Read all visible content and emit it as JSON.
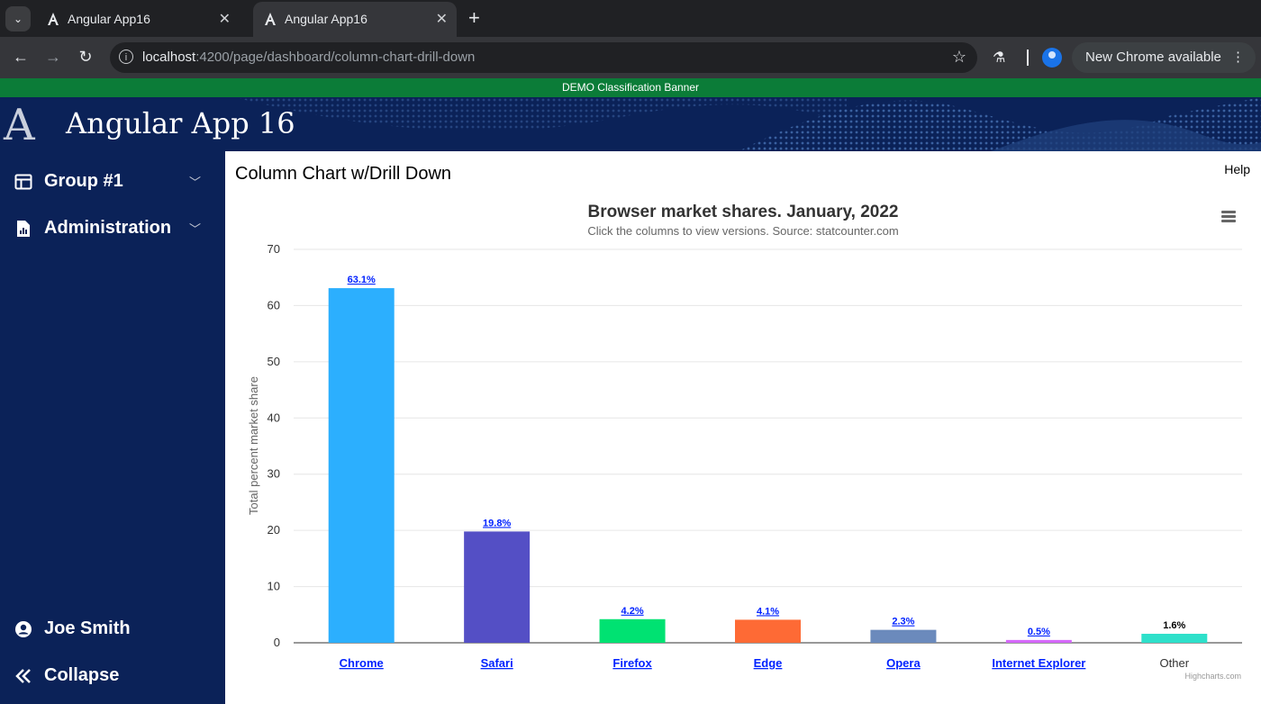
{
  "browser": {
    "tabs": [
      {
        "title": "Angular App16",
        "active": false
      },
      {
        "title": "Angular App16",
        "active": true
      }
    ],
    "new_tab_glyph": "+",
    "url_host": "localhost",
    "url_rest": ":4200/page/dashboard/column-chart-drill-down",
    "update_label": "New Chrome available",
    "tab_close_glyph": "✕"
  },
  "app": {
    "banner": "DEMO Classification Banner",
    "logo_letter": "A",
    "title": "Angular App 16"
  },
  "sidebar": {
    "items": [
      {
        "label": "Group #1",
        "icon": "dashboard-icon"
      },
      {
        "label": "Administration",
        "icon": "report-file-icon"
      }
    ],
    "user": {
      "label": "Joe Smith",
      "icon": "account-circle-icon"
    },
    "collapse": {
      "label": "Collapse",
      "icon": "double-chevron-left-icon"
    }
  },
  "page": {
    "title": "Column Chart w/Drill Down",
    "help": "Help"
  },
  "chart_data": {
    "type": "bar",
    "title": "Browser market shares. January, 2022",
    "subtitle": "Click the columns to view versions. Source: statcounter.com",
    "ylabel": "Total percent market share",
    "ylim": [
      0,
      70
    ],
    "yticks": [
      0,
      10,
      20,
      30,
      40,
      50,
      60,
      70
    ],
    "categories": [
      "Chrome",
      "Safari",
      "Firefox",
      "Edge",
      "Opera",
      "Internet Explorer",
      "Other"
    ],
    "values": [
      63.1,
      19.8,
      4.2,
      4.1,
      2.3,
      0.5,
      1.6
    ],
    "data_labels": [
      "63.1%",
      "19.8%",
      "4.2%",
      "4.1%",
      "2.3%",
      "0.5%",
      "1.6%"
    ],
    "drilldown": [
      true,
      true,
      true,
      true,
      true,
      true,
      false
    ],
    "colors": [
      "#2caffe",
      "#544fc5",
      "#00e272",
      "#fe6a35",
      "#6b8abc",
      "#d568fb",
      "#2ee0ca"
    ],
    "grid": true,
    "credits": "Highcharts.com"
  },
  "colors": {
    "sidebar_bg": "#0b2258",
    "banner_bg": "#0b7c38",
    "drilldown_link": "#0022ff"
  }
}
